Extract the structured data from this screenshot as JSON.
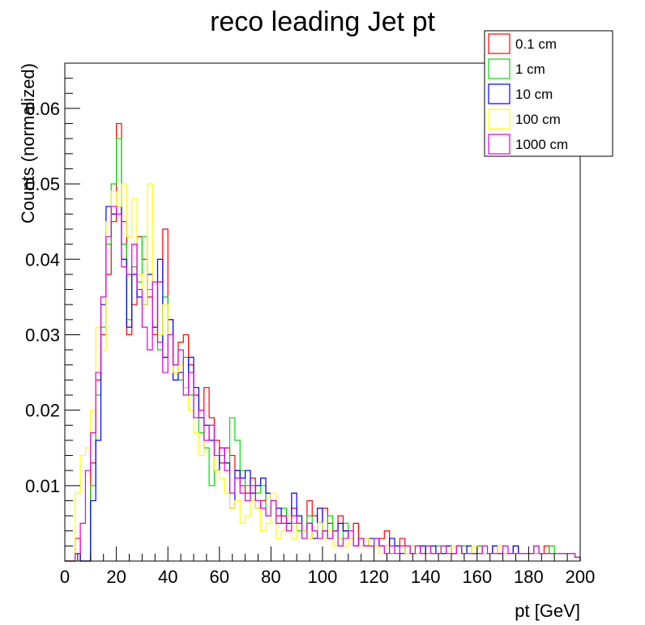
{
  "chart_data": {
    "type": "line",
    "title": "reco leading Jet pt",
    "xlabel": "pt [GeV]",
    "ylabel": "Counts (normalized)",
    "xlim": [
      0,
      200
    ],
    "ylim": [
      0,
      0.066
    ],
    "x_ticks": [
      0,
      20,
      40,
      60,
      80,
      100,
      120,
      140,
      160,
      180,
      200
    ],
    "x_tick_labels": [
      "0",
      "20",
      "40",
      "60",
      "80",
      "100",
      "120",
      "140",
      "160",
      "180",
      "200"
    ],
    "y_ticks": [
      0.01,
      0.02,
      0.03,
      0.04,
      0.05,
      0.06
    ],
    "y_tick_labels": [
      "0.01",
      "0.02",
      "0.03",
      "0.04",
      "0.05",
      "0.06"
    ],
    "bin_width": 2,
    "grid": false,
    "legend_position": "top-right",
    "series": [
      {
        "name": "0.1 cm",
        "color": "#ff0000",
        "values": [
          0,
          0,
          0.003,
          0,
          0,
          0.013,
          0.024,
          0.03,
          0.038,
          0.045,
          0.058,
          0.045,
          0.03,
          0.034,
          0.043,
          0.04,
          0.035,
          0.03,
          0.037,
          0.044,
          0.032,
          0.025,
          0.029,
          0.03,
          0.026,
          0.022,
          0.02,
          0.023,
          0.019,
          0.016,
          0.013,
          0.015,
          0.014,
          0.012,
          0.01,
          0.009,
          0.011,
          0.007,
          0.008,
          0.009,
          0.008,
          0.006,
          0.005,
          0.006,
          0.007,
          0.005,
          0.004,
          0.008,
          0.006,
          0.005,
          0.007,
          0.005,
          0.004,
          0.006,
          0.004,
          0.003,
          0.005,
          0.002,
          0.003,
          0.002,
          0.002,
          0.003,
          0.004,
          0.002,
          0.002,
          0.003,
          0.001,
          0.002,
          0.002,
          0.001,
          0.002,
          0.001,
          0.001,
          0.002,
          0.002,
          0.001,
          0.002,
          0.001,
          0.001,
          0.001,
          0.002,
          0.001,
          0.001,
          0.002,
          0.001,
          0.001,
          0.001,
          0.002,
          0.001,
          0.001,
          0.001,
          0.001,
          0.001,
          0.002,
          0.001,
          0.001,
          0.001,
          0.001,
          0.001,
          0.0005
        ]
      },
      {
        "name": "1 cm",
        "color": "#00dd00",
        "values": [
          0,
          0,
          0.001,
          0,
          0,
          0.01,
          0.022,
          0.031,
          0.042,
          0.05,
          0.056,
          0.042,
          0.032,
          0.039,
          0.037,
          0.043,
          0.036,
          0.031,
          0.028,
          0.035,
          0.03,
          0.026,
          0.024,
          0.027,
          0.022,
          0.019,
          0.017,
          0.015,
          0.01,
          0.012,
          0.014,
          0.013,
          0.019,
          0.016,
          0.012,
          0.01,
          0.008,
          0.009,
          0.01,
          0.006,
          0.008,
          0.005,
          0.007,
          0.006,
          0.005,
          0.004,
          0.003,
          0.006,
          0.004,
          0.005,
          0.003,
          0.006,
          0.004,
          0.003,
          0.005,
          0.003,
          0.002,
          0.003,
          0.002,
          0.002,
          0.003,
          0.002,
          0.002,
          0.001,
          0.002,
          0.002,
          0.001,
          0.002,
          0.001,
          0.002,
          0.001,
          0.001,
          0.002,
          0.001,
          0.002,
          0.001,
          0.001,
          0.002,
          0.001,
          0.001,
          0.002,
          0.001,
          0.001,
          0.001,
          0.002,
          0.001,
          0.001,
          0.001,
          0.001,
          0.001,
          0.001,
          0.002,
          0.001,
          0.001,
          0.002,
          0.001,
          0.001,
          0.001,
          0.001,
          0.0005
        ]
      },
      {
        "name": "10 cm",
        "color": "#0000ff",
        "values": [
          0,
          0,
          0.001,
          0,
          0,
          0.008,
          0.016,
          0.034,
          0.047,
          0.046,
          0.047,
          0.04,
          0.031,
          0.038,
          0.035,
          0.034,
          0.038,
          0.031,
          0.04,
          0.027,
          0.032,
          0.024,
          0.025,
          0.023,
          0.027,
          0.023,
          0.019,
          0.018,
          0.016,
          0.012,
          0.015,
          0.013,
          0.007,
          0.012,
          0.011,
          0.012,
          0.009,
          0.01,
          0.011,
          0.009,
          0.008,
          0.007,
          0.006,
          0.005,
          0.009,
          0.006,
          0.004,
          0.005,
          0.003,
          0.007,
          0.004,
          0.003,
          0.004,
          0.005,
          0.004,
          0.003,
          0.002,
          0.003,
          0.002,
          0.003,
          0.003,
          0.002,
          0.002,
          0.003,
          0.002,
          0.001,
          0.002,
          0.001,
          0.001,
          0.002,
          0.002,
          0.002,
          0.001,
          0.001,
          0.002,
          0.001,
          0.002,
          0.001,
          0.002,
          0.001,
          0.001,
          0.001,
          0.001,
          0.002,
          0.001,
          0.001,
          0.001,
          0.002,
          0.001,
          0.001,
          0.001,
          0.001,
          0.001,
          0.001,
          0.001,
          0.001,
          0.001,
          0.001,
          0.001,
          0.0005
        ]
      },
      {
        "name": "100 cm",
        "color": "#ffff00",
        "values": [
          0,
          0,
          0.009,
          0.014,
          0.015,
          0.02,
          0.031,
          0.028,
          0.045,
          0.049,
          0.047,
          0.05,
          0.043,
          0.048,
          0.038,
          0.034,
          0.05,
          0.032,
          0.03,
          0.034,
          0.027,
          0.025,
          0.026,
          0.023,
          0.02,
          0.017,
          0.014,
          0.016,
          0.018,
          0.012,
          0.011,
          0.009,
          0.007,
          0.008,
          0.005,
          0.006,
          0.008,
          0.007,
          0.004,
          0.005,
          0.009,
          0.003,
          0.004,
          0.006,
          0.003,
          0.005,
          0.004,
          0.003,
          0.004,
          0.005,
          0.003,
          0.004,
          0.002,
          0.003,
          0.002,
          0.003,
          0.002,
          0.002,
          0.003,
          0.002,
          0.002,
          0.001,
          0.002,
          0.002,
          0.001,
          0.002,
          0.001,
          0.002,
          0.001,
          0.001,
          0.002,
          0.001,
          0.001,
          0.002,
          0.001,
          0.002,
          0.001,
          0.001,
          0.001,
          0.002,
          0.001,
          0.001,
          0.001,
          0.001,
          0.002,
          0.001,
          0.001,
          0.001,
          0.001,
          0.001,
          0.001,
          0.001,
          0.001,
          0.001,
          0.001,
          0.001,
          0.001,
          0.001,
          0.001,
          0.0005
        ]
      },
      {
        "name": "1000 cm",
        "color": "#dd00dd",
        "values": [
          0,
          0,
          0.001,
          0.005,
          0.012,
          0.017,
          0.025,
          0.035,
          0.043,
          0.047,
          0.046,
          0.039,
          0.038,
          0.042,
          0.036,
          0.031,
          0.028,
          0.037,
          0.029,
          0.025,
          0.03,
          0.026,
          0.028,
          0.022,
          0.025,
          0.019,
          0.02,
          0.016,
          0.018,
          0.014,
          0.015,
          0.012,
          0.009,
          0.011,
          0.009,
          0.008,
          0.01,
          0.008,
          0.007,
          0.006,
          0.008,
          0.005,
          0.006,
          0.004,
          0.006,
          0.005,
          0.003,
          0.005,
          0.004,
          0.003,
          0.004,
          0.003,
          0.004,
          0.002,
          0.003,
          0.004,
          0.002,
          0.003,
          0.002,
          0.002,
          0.003,
          0.002,
          0.001,
          0.002,
          0.001,
          0.002,
          0.002,
          0.001,
          0.002,
          0.001,
          0.002,
          0.001,
          0.001,
          0.002,
          0.001,
          0.001,
          0.002,
          0.001,
          0.001,
          0.001,
          0.001,
          0.002,
          0.001,
          0.001,
          0.001,
          0.002,
          0.001,
          0.001,
          0.001,
          0.001,
          0.001,
          0.002,
          0.001,
          0.001,
          0.001,
          0.001,
          0.001,
          0.001,
          0.001,
          0.0005
        ]
      }
    ]
  }
}
